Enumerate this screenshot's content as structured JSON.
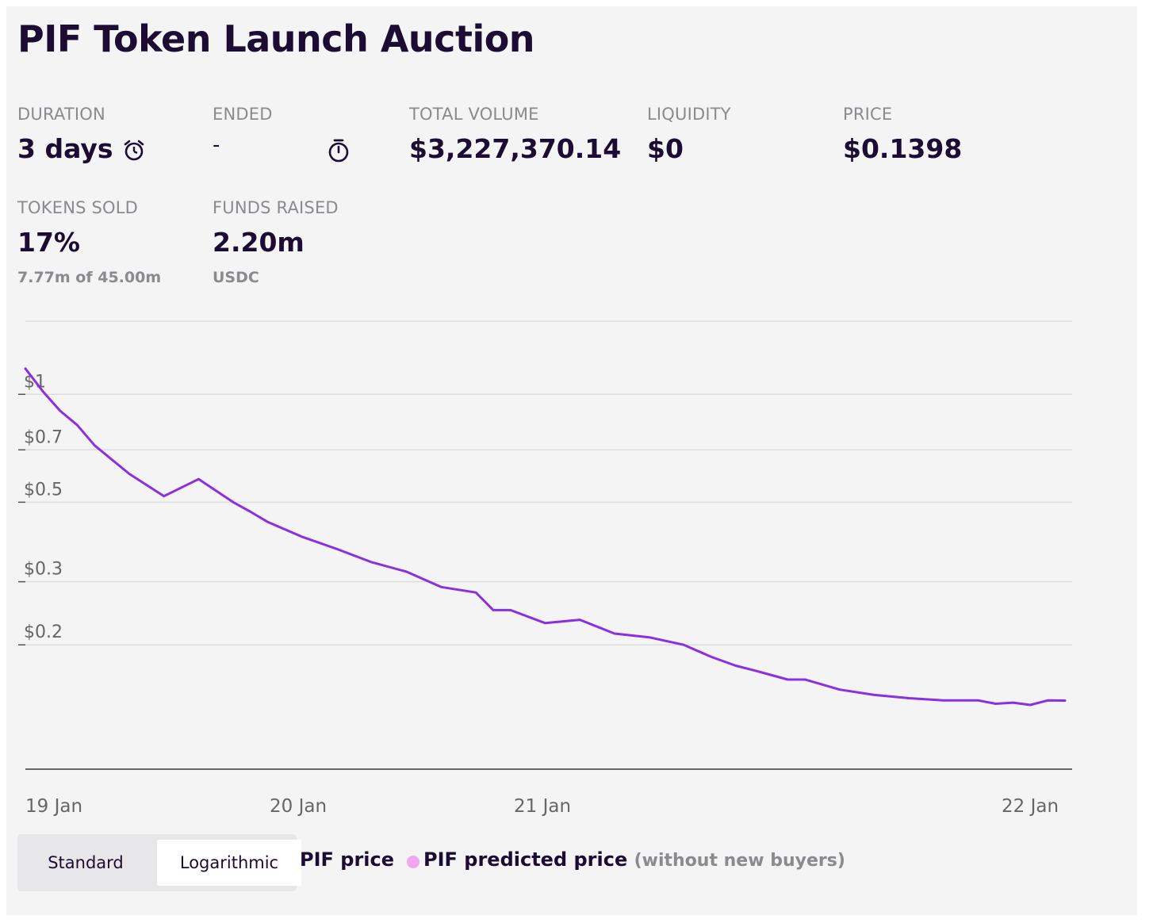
{
  "title": "PIF Token Launch Auction",
  "stats": {
    "duration": {
      "label": "DURATION",
      "value": "3 days",
      "icon": "alarm-clock-icon"
    },
    "ended": {
      "label": "ENDED",
      "value": "-",
      "icon": "stopwatch-icon"
    },
    "total_volume": {
      "label": "TOTAL VOLUME",
      "value": "$3,227,370.14"
    },
    "liquidity": {
      "label": "LIQUIDITY",
      "value": "$0"
    },
    "price": {
      "label": "PRICE",
      "value": "$0.1398"
    },
    "tokens_sold": {
      "label": "TOKENS SOLD",
      "value": "17%",
      "sub": "7.77m of 45.00m"
    },
    "funds_raised": {
      "label": "FUNDS RAISED",
      "value": "2.20m",
      "sub": "USDC"
    }
  },
  "colors": {
    "line": "#8b2fe0",
    "predicted": "#f3a6f0",
    "grid": "#dcdcdc",
    "axis": "#555555"
  },
  "chart_data": {
    "type": "line",
    "scale": "log",
    "grid": true,
    "x_ticks": [
      "19 Jan",
      "20 Jan",
      "21 Jan",
      "22 Jan"
    ],
    "y_ticks": [
      {
        "label": "$1",
        "value": 1
      },
      {
        "label": "$0.7",
        "value": 0.7
      },
      {
        "label": "$0.5",
        "value": 0.5
      },
      {
        "label": "$0.3",
        "value": 0.3
      },
      {
        "label": "$0.2",
        "value": 0.2
      }
    ],
    "ylim": [
      0.09,
      1.6
    ],
    "xlim": [
      0,
      3.05
    ],
    "series": [
      {
        "name": "PIF price",
        "x": [
          0,
          0.05,
          0.1,
          0.15,
          0.2,
          0.3,
          0.4,
          0.5,
          0.6,
          0.65,
          0.7,
          0.8,
          0.9,
          1.0,
          1.1,
          1.2,
          1.3,
          1.35,
          1.4,
          1.5,
          1.6,
          1.7,
          1.8,
          1.9,
          1.98,
          2.05,
          2.1,
          2.15,
          2.2,
          2.25,
          2.3,
          2.35,
          2.45,
          2.55,
          2.65,
          2.75,
          2.8,
          2.85,
          2.9,
          2.95,
          3.0
        ],
        "values": [
          1.18,
          1.02,
          0.9,
          0.82,
          0.72,
          0.6,
          0.52,
          0.58,
          0.5,
          0.47,
          0.44,
          0.4,
          0.37,
          0.34,
          0.32,
          0.29,
          0.28,
          0.25,
          0.25,
          0.23,
          0.235,
          0.215,
          0.21,
          0.2,
          0.185,
          0.175,
          0.17,
          0.165,
          0.16,
          0.16,
          0.155,
          0.15,
          0.145,
          0.142,
          0.14,
          0.14,
          0.137,
          0.138,
          0.136,
          0.14,
          0.1398
        ]
      }
    ],
    "legend": [
      {
        "name": "PIF price",
        "color": "#8b2fe0"
      },
      {
        "name": "PIF predicted price",
        "note": "(without new buyers)",
        "color": "#f3a6f0"
      }
    ]
  },
  "scale_toggle": {
    "options": [
      "Standard",
      "Logarithmic"
    ],
    "selected": "Logarithmic"
  }
}
